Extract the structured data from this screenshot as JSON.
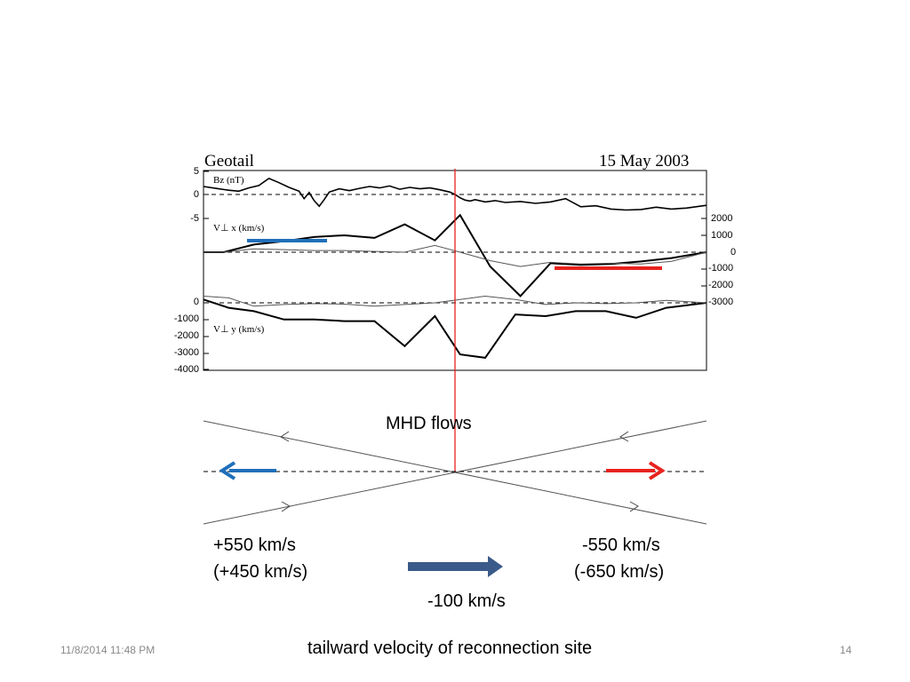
{
  "figure": {
    "spacecraft": "Geotail",
    "date": "15 May 2003",
    "panel_labels": {
      "bz": "Bz (nT)",
      "vx": "V⊥ x (km/s)",
      "vy": "V⊥ y (km/s)"
    }
  },
  "chart_data": [
    {
      "type": "line",
      "panel": "bz",
      "ylabel": "Bz (nT)",
      "yticks": [
        5,
        0,
        -5
      ],
      "ylim": [
        -5,
        5
      ],
      "x": [
        0,
        3,
        5,
        7,
        9,
        11,
        13,
        15,
        17,
        19,
        20,
        21,
        22,
        23,
        24,
        25,
        27,
        29,
        31,
        33,
        35,
        37,
        39,
        41,
        43,
        45,
        47,
        49,
        50,
        51,
        52,
        53,
        54,
        56,
        58,
        60,
        63,
        66,
        69,
        72,
        75,
        78,
        81,
        84,
        87,
        90,
        93,
        96,
        100
      ],
      "values": [
        1.8,
        1.3,
        1.0,
        0.8,
        1.5,
        2.0,
        3.5,
        2.6,
        1.6,
        0.8,
        -0.8,
        0.5,
        -1.2,
        -2.4,
        -1.0,
        0.6,
        1.3,
        0.9,
        1.4,
        1.8,
        1.5,
        1.9,
        1.2,
        1.6,
        1.3,
        1.5,
        1.1,
        0.6,
        0.1,
        -0.6,
        -1.1,
        -1.3,
        -1.0,
        -1.5,
        -1.2,
        -1.6,
        -1.4,
        -1.8,
        -1.5,
        -0.8,
        -2.5,
        -2.3,
        -3.0,
        -3.2,
        -3.1,
        -2.6,
        -3.0,
        -2.8,
        -2.2
      ]
    },
    {
      "type": "line",
      "panel": "vx",
      "ylabel": "V⊥ x (km/s)",
      "yticks": [
        2000,
        1000,
        0,
        -1000,
        -2000,
        -3000
      ],
      "ylim": [
        -3000,
        2000
      ],
      "x": [
        0,
        4,
        10,
        16,
        22,
        28,
        34,
        40,
        46,
        51,
        57,
        63,
        69,
        75,
        81,
        87,
        93,
        100
      ],
      "series": [
        {
          "values": [
            0,
            0,
            450,
            650,
            900,
            1000,
            850,
            1650,
            700,
            2200,
            -850,
            -2600,
            -650,
            -750,
            -700,
            -550,
            -350,
            0
          ]
        },
        {
          "values": [
            0,
            0,
            200,
            150,
            100,
            100,
            50,
            0,
            400,
            0,
            -500,
            -850,
            -600,
            -700,
            -650,
            -700,
            -550,
            0
          ]
        }
      ]
    },
    {
      "type": "line",
      "panel": "vy",
      "ylabel": "V⊥ y (km/s)",
      "yticks": [
        0,
        -1000,
        -2000,
        -3000,
        -4000
      ],
      "ylim": [
        -4000,
        0
      ],
      "x": [
        0,
        5,
        10,
        16,
        22,
        28,
        34,
        40,
        46,
        51,
        56,
        62,
        68,
        74,
        80,
        86,
        92,
        100
      ],
      "series": [
        {
          "values": [
            200,
            -300,
            -500,
            -1000,
            -1000,
            -1100,
            -1100,
            -2600,
            -800,
            -3100,
            -3300,
            -700,
            -800,
            -500,
            -500,
            -900,
            -300,
            0
          ]
        },
        {
          "values": [
            400,
            300,
            -200,
            -100,
            -50,
            -80,
            -200,
            -100,
            0,
            200,
            400,
            200,
            -100,
            0,
            -50,
            0,
            150,
            0
          ]
        }
      ]
    }
  ],
  "diagram": {
    "title": "MHD flows"
  },
  "velocities": {
    "left_line1": "+550 km/s",
    "left_line2": "(+450 km/s)",
    "right_line1": "-550 km/s",
    "right_line2": "(-650 km/s)",
    "site": "-100 km/s"
  },
  "caption": "tailward velocity of reconnection site",
  "footer": {
    "date": "11/8/2014 11:48 PM",
    "page": "14"
  },
  "colors": {
    "red": "#e8231f",
    "blue": "#1f6fba",
    "arrow": "#3a5a8a"
  }
}
